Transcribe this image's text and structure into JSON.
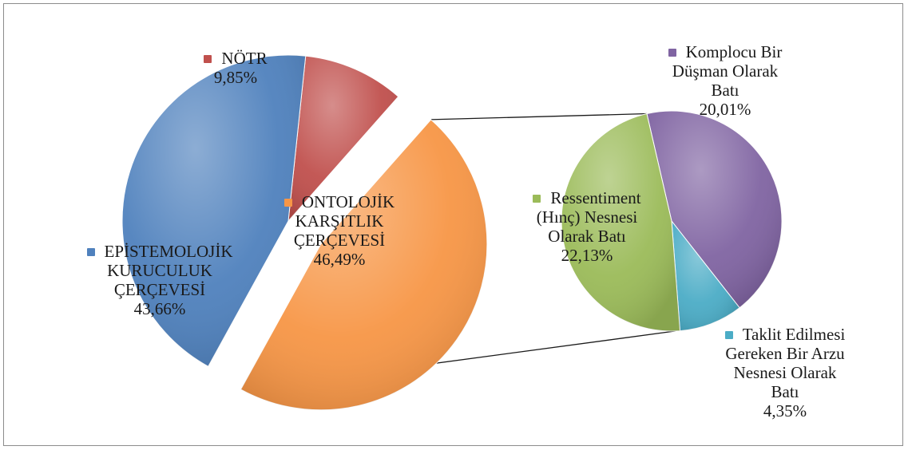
{
  "chart_data": {
    "type": "pie",
    "main": {
      "slices": [
        {
          "label": "NÖTR",
          "display": "9,85%",
          "value": 9.85,
          "color": "#c0504d"
        },
        {
          "label": "ONTOLOJİK KARŞITLIK ÇERÇEVESİ",
          "display": "46,49%",
          "value": 46.49,
          "color": "#f79646"
        },
        {
          "label": "EPİSTEMOLOJİK KURUCULUK ÇERÇEVESİ",
          "display": "43,66%",
          "value": 43.66,
          "color": "#4f81bd"
        }
      ]
    },
    "breakdown": {
      "parent": "ONTOLOJİK KARŞITLIK ÇERÇEVESİ",
      "slices": [
        {
          "label": "Komplocu Bir Düşman Olarak Batı",
          "display": "20,01%",
          "value": 20.01,
          "color": "#8064a2"
        },
        {
          "label": "Taklit Edilmesi Gereken Bir Arzu Nesnesi Olarak Batı",
          "display": "4,35%",
          "value": 4.35,
          "color": "#4bacc6"
        },
        {
          "label": "Ressentiment (Hınç) Nesnesi Olarak Batı",
          "display": "22,13%",
          "value": 22.13,
          "color": "#9bbb59"
        }
      ]
    }
  }
}
